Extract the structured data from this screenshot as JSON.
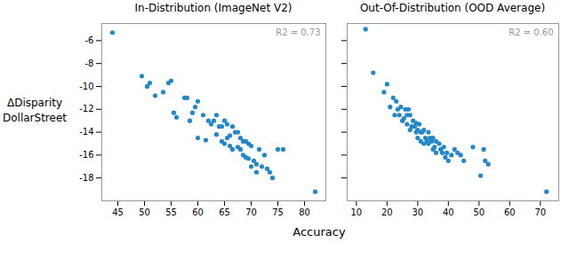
{
  "chart_data": [
    {
      "type": "scatter",
      "title": "In-Distribution (ImageNet V2)",
      "ylabel": "ΔDisparity\nDollarStreet",
      "xlabel": "Accuracy",
      "annotation": "R2 = 0.73",
      "color": "#2488c8",
      "xlim": [
        42,
        84
      ],
      "ylim": [
        -20.0,
        -4.5
      ],
      "xticks": [
        45,
        50,
        55,
        60,
        65,
        70,
        75,
        80
      ],
      "yticks": [
        -6,
        -8,
        -10,
        -12,
        -14,
        -16,
        -18
      ],
      "x": [
        44.0,
        49.5,
        50.5,
        51.0,
        52.0,
        53.5,
        54.5,
        55.0,
        55.5,
        56.0,
        57.5,
        58.0,
        58.5,
        59.0,
        59.5,
        60.0,
        60.0,
        61.0,
        61.5,
        62.0,
        62.5,
        63.0,
        63.5,
        63.5,
        64.0,
        64.5,
        64.5,
        65.0,
        65.0,
        65.5,
        65.5,
        66.0,
        66.0,
        66.5,
        66.5,
        67.0,
        67.5,
        67.5,
        68.0,
        68.0,
        68.5,
        68.5,
        69.0,
        69.0,
        69.5,
        69.5,
        70.0,
        70.0,
        70.5,
        71.0,
        71.0,
        71.5,
        72.0,
        72.5,
        73.0,
        73.5,
        74.0,
        75.0,
        76.0,
        82.0
      ],
      "values": [
        -5.3,
        -9.1,
        -10.0,
        -9.7,
        -10.8,
        -10.5,
        -9.7,
        -9.5,
        -12.3,
        -12.7,
        -11.0,
        -11.0,
        -13.0,
        -12.3,
        -11.8,
        -11.3,
        -14.5,
        -12.5,
        -14.7,
        -13.0,
        -13.3,
        -13.0,
        -12.5,
        -14.2,
        -13.5,
        -13.5,
        -14.8,
        -13.0,
        -15.0,
        -13.3,
        -14.5,
        -14.3,
        -15.2,
        -13.5,
        -15.5,
        -14.0,
        -14.0,
        -15.3,
        -14.5,
        -15.5,
        -14.8,
        -16.0,
        -14.8,
        -16.2,
        -15.0,
        -16.3,
        -15.2,
        -17.0,
        -16.5,
        -17.5,
        -16.8,
        -15.5,
        -17.0,
        -16.0,
        -17.2,
        -17.5,
        -18.0,
        -15.5,
        -15.5,
        -19.2
      ]
    },
    {
      "type": "scatter",
      "title": "Out-Of-Distribution (OOD Average)",
      "annotation": "R2 = 0.60",
      "color": "#2488c8",
      "tick_labels": "x",
      "xlim": [
        7,
        76
      ],
      "ylim": [
        -20.0,
        -4.5
      ],
      "xticks": [
        10,
        20,
        30,
        40,
        50,
        60,
        70
      ],
      "yticks": [
        -6,
        -8,
        -10,
        -12,
        -14,
        -16,
        -18
      ],
      "x": [
        13.0,
        15.5,
        19.0,
        20.0,
        21.0,
        22.0,
        22.5,
        23.0,
        23.5,
        24.0,
        24.5,
        25.0,
        25.5,
        26.0,
        26.5,
        26.5,
        27.0,
        27.5,
        27.5,
        28.0,
        28.5,
        29.0,
        29.5,
        29.5,
        30.0,
        30.0,
        30.5,
        31.0,
        31.0,
        31.5,
        32.0,
        32.0,
        32.5,
        33.0,
        33.5,
        33.5,
        34.0,
        34.5,
        35.0,
        35.0,
        35.5,
        36.0,
        36.0,
        37.0,
        37.5,
        38.0,
        38.5,
        39.0,
        39.5,
        40.0,
        41.0,
        42.0,
        43.0,
        44.0,
        45.0,
        48.0,
        50.5,
        51.5,
        52.0,
        53.0,
        72.0
      ],
      "values": [
        -5.0,
        -8.8,
        -10.5,
        -9.8,
        -11.8,
        -11.0,
        -12.5,
        -11.3,
        -12.0,
        -12.5,
        -11.8,
        -13.0,
        -12.8,
        -12.0,
        -12.5,
        -13.3,
        -12.0,
        -12.5,
        -13.8,
        -13.5,
        -13.0,
        -13.5,
        -13.2,
        -14.0,
        -13.8,
        -14.5,
        -13.3,
        -14.0,
        -14.8,
        -14.0,
        -13.8,
        -15.0,
        -14.5,
        -14.8,
        -14.0,
        -15.0,
        -14.5,
        -14.8,
        -14.5,
        -15.5,
        -15.3,
        -14.8,
        -15.8,
        -15.0,
        -15.5,
        -15.8,
        -15.3,
        -16.2,
        -15.8,
        -16.5,
        -16.0,
        -15.5,
        -15.8,
        -16.0,
        -16.5,
        -15.3,
        -17.8,
        -15.5,
        -16.5,
        -16.8,
        -19.2
      ]
    }
  ]
}
